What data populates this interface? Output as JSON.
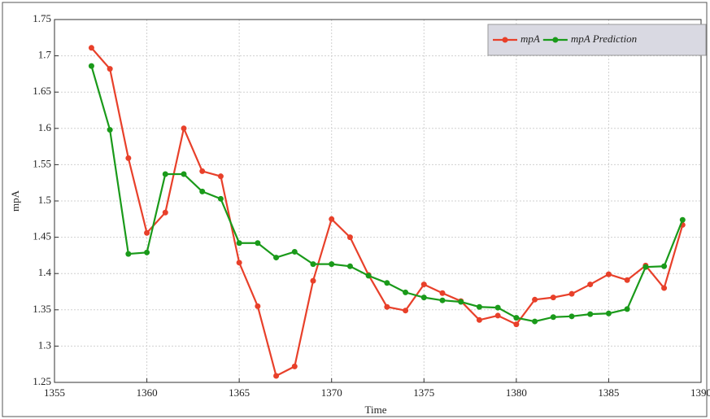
{
  "chart_data": {
    "type": "line",
    "x_label": "Time",
    "y_label": "mpA",
    "x": [
      1357,
      1358,
      1359,
      1360,
      1361,
      1362,
      1363,
      1364,
      1365,
      1366,
      1367,
      1368,
      1369,
      1370,
      1371,
      1372,
      1373,
      1374,
      1375,
      1376,
      1377,
      1378,
      1379,
      1380,
      1381,
      1382,
      1383,
      1384,
      1385,
      1386,
      1387,
      1388,
      1389
    ],
    "series": [
      {
        "name": "mpA",
        "color": "#e8402a",
        "values": [
          1.711,
          1.682,
          1.559,
          1.456,
          1.484,
          1.6,
          1.541,
          1.534,
          1.415,
          1.355,
          1.259,
          1.272,
          1.39,
          1.475,
          1.45,
          1.398,
          1.354,
          1.349,
          1.385,
          1.373,
          1.362,
          1.336,
          1.342,
          1.33,
          1.364,
          1.367,
          1.372,
          1.385,
          1.399,
          1.391,
          1.411,
          1.38,
          1.467
        ]
      },
      {
        "name": "mpA Prediction",
        "color": "#1a9a1a",
        "values": [
          1.686,
          1.598,
          1.427,
          1.429,
          1.537,
          1.537,
          1.513,
          1.503,
          1.442,
          1.442,
          1.422,
          1.43,
          1.413,
          1.413,
          1.41,
          1.397,
          1.387,
          1.374,
          1.367,
          1.363,
          1.361,
          1.354,
          1.353,
          1.339,
          1.334,
          1.34,
          1.341,
          1.344,
          1.345,
          1.351,
          1.409,
          1.41,
          1.474
        ]
      }
    ],
    "xlim": [
      1355,
      1390
    ],
    "xticks": [
      1355,
      1360,
      1365,
      1370,
      1375,
      1380,
      1385,
      1390
    ],
    "ylim": [
      1.25,
      1.75
    ],
    "yticks": [
      1.25,
      1.3,
      1.35,
      1.4,
      1.45,
      1.5,
      1.55,
      1.6,
      1.65,
      1.7,
      1.75
    ],
    "grid": true,
    "legend": "upper right"
  }
}
